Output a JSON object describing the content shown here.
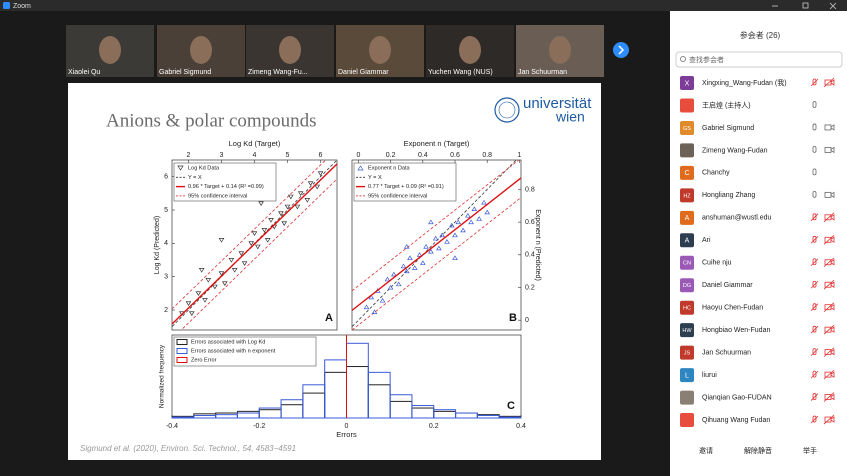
{
  "window": {
    "title": "Zoom"
  },
  "videos": [
    {
      "name": "Xiaolei Qu"
    },
    {
      "name": "Gabriel Sigmund"
    },
    {
      "name": "Zimeng Wang-Fu..."
    },
    {
      "name": "Daniel Giammar"
    },
    {
      "name": "Yuchen Wang (NUS)"
    },
    {
      "name": "Jan Schuurman"
    }
  ],
  "slide": {
    "title": "Anions & polar compounds",
    "logo": {
      "line1": "universität",
      "line2": "wien"
    },
    "citation": "Sigmund et al. (2020), Environ. Sci. Technol., 54, 4583−4591",
    "panel_a": {
      "letter": "A",
      "xlabel": "Log Kd (Target)",
      "ylabel": "Log Kd (Predicted)",
      "xlim": [
        1.5,
        6.5
      ],
      "ylim": [
        1.4,
        6.5
      ],
      "xticks": [
        2,
        3,
        4,
        5,
        6
      ],
      "yticks": [
        2,
        3,
        4,
        5,
        6
      ],
      "legend": [
        "Log Kd Data",
        "Y = X",
        "0.96 * Target + 0.14 (R² =0.99)",
        "95% confidence interval"
      ],
      "fit_line": [
        [
          1.5,
          1.58
        ],
        [
          6.5,
          6.38
        ]
      ],
      "ci_offset": 0.45,
      "points": [
        [
          1.8,
          1.9
        ],
        [
          2.0,
          2.2
        ],
        [
          2.1,
          1.9
        ],
        [
          2.3,
          2.5
        ],
        [
          2.5,
          2.3
        ],
        [
          2.6,
          2.9
        ],
        [
          2.8,
          2.7
        ],
        [
          3.0,
          3.1
        ],
        [
          3.1,
          2.8
        ],
        [
          3.3,
          3.5
        ],
        [
          3.4,
          3.2
        ],
        [
          3.6,
          3.7
        ],
        [
          3.7,
          3.4
        ],
        [
          3.9,
          4.0
        ],
        [
          4.0,
          4.3
        ],
        [
          4.1,
          3.9
        ],
        [
          4.3,
          4.4
        ],
        [
          4.4,
          4.1
        ],
        [
          4.5,
          4.7
        ],
        [
          4.6,
          4.5
        ],
        [
          4.8,
          4.9
        ],
        [
          4.9,
          4.6
        ],
        [
          5.0,
          5.1
        ],
        [
          5.1,
          5.4
        ],
        [
          5.3,
          5.1
        ],
        [
          5.4,
          5.5
        ],
        [
          5.6,
          5.3
        ],
        [
          5.7,
          5.8
        ],
        [
          5.9,
          5.7
        ],
        [
          6.0,
          6.1
        ],
        [
          3.0,
          4.1
        ],
        [
          2.4,
          3.2
        ],
        [
          4.2,
          5.2
        ]
      ]
    },
    "panel_b": {
      "letter": "B",
      "xlabel": "Exponent n (Target)",
      "ylabel": "Exponent n (Predicted)",
      "xlim": [
        -0.04,
        1.01
      ],
      "ylim": [
        -0.06,
        0.98
      ],
      "xticks": [
        0,
        0.2,
        0.4,
        0.6,
        0.8,
        1
      ],
      "yticks": [
        0,
        0.2,
        0.4,
        0.6,
        0.8
      ],
      "legend": [
        "Exponent n Data",
        "Y = X",
        "0.77 * Target + 0.09 (R² =0.91)",
        "95% confidence interval"
      ],
      "fit_line": [
        [
          -0.04,
          0.06
        ],
        [
          1.01,
          0.87
        ]
      ],
      "ci_offset": 0.12,
      "points": [
        [
          0.05,
          0.08
        ],
        [
          0.08,
          0.14
        ],
        [
          0.1,
          0.05
        ],
        [
          0.12,
          0.18
        ],
        [
          0.15,
          0.12
        ],
        [
          0.18,
          0.25
        ],
        [
          0.2,
          0.2
        ],
        [
          0.22,
          0.28
        ],
        [
          0.25,
          0.22
        ],
        [
          0.28,
          0.33
        ],
        [
          0.3,
          0.3
        ],
        [
          0.32,
          0.38
        ],
        [
          0.35,
          0.32
        ],
        [
          0.38,
          0.4
        ],
        [
          0.4,
          0.35
        ],
        [
          0.42,
          0.45
        ],
        [
          0.45,
          0.42
        ],
        [
          0.48,
          0.5
        ],
        [
          0.5,
          0.44
        ],
        [
          0.52,
          0.52
        ],
        [
          0.55,
          0.48
        ],
        [
          0.58,
          0.58
        ],
        [
          0.6,
          0.52
        ],
        [
          0.62,
          0.6
        ],
        [
          0.65,
          0.55
        ],
        [
          0.68,
          0.64
        ],
        [
          0.7,
          0.6
        ],
        [
          0.72,
          0.68
        ],
        [
          0.75,
          0.62
        ],
        [
          0.78,
          0.72
        ],
        [
          0.8,
          0.66
        ],
        [
          0.45,
          0.6
        ],
        [
          0.3,
          0.45
        ],
        [
          0.6,
          0.38
        ]
      ]
    },
    "panel_c": {
      "letter": "C",
      "xlabel": "Errors",
      "ylabel": "Normalized frequency",
      "xlim": [
        -0.4,
        0.4
      ],
      "ylim": [
        0,
        1
      ],
      "xticks": [
        -0.4,
        -0.2,
        0,
        0.2,
        0.4
      ],
      "legend": [
        "Errors associated with Log Kd",
        "Errors associated with n exponent",
        "Zero Error"
      ],
      "bins": [
        -0.4,
        -0.35,
        -0.3,
        -0.25,
        -0.2,
        -0.15,
        -0.1,
        -0.05,
        0,
        0.05,
        0.1,
        0.15,
        0.2,
        0.25,
        0.3,
        0.35,
        0.4
      ],
      "series": [
        {
          "color": "#222222",
          "values": [
            0.02,
            0.05,
            0.06,
            0.08,
            0.1,
            0.16,
            0.3,
            0.55,
            0.62,
            0.4,
            0.2,
            0.12,
            0.08,
            0.06,
            0.04,
            0.02
          ]
        },
        {
          "color": "#3a5bd9",
          "values": [
            0.01,
            0.03,
            0.04,
            0.06,
            0.12,
            0.22,
            0.4,
            0.7,
            0.9,
            0.55,
            0.28,
            0.15,
            0.1,
            0.06,
            0.03,
            0.01
          ]
        }
      ],
      "zero_line": 0
    }
  },
  "participants": {
    "header": "参会者 (26)",
    "search": "查找参会者",
    "list": [
      {
        "initials": "X",
        "name": "Xingxing_Wang-Fudan (我)",
        "color": "#7d3c98",
        "mic": "off",
        "video": "off"
      },
      {
        "name": "王启煌 (主持人)",
        "color": "#e74c3c",
        "mic": "on",
        "video": "none"
      },
      {
        "initials": "GS",
        "name": "Gabriel Sigmund",
        "color": "#e08a2c",
        "mic": "on",
        "video": "on"
      },
      {
        "name": "Zimeng Wang-Fudan",
        "color": "#6d6257",
        "mic": "on",
        "video": "on"
      },
      {
        "initials": "C",
        "name": "Chanchy",
        "color": "#e06b1c",
        "mic": "on",
        "video": "none"
      },
      {
        "initials": "HZ",
        "name": "Hongliang Zhang",
        "color": "#c0392b",
        "mic": "on",
        "video": "on"
      },
      {
        "initials": "A",
        "name": "anshuman@wustl.edu",
        "color": "#e06b1c",
        "mic": "off",
        "video": "off"
      },
      {
        "initials": "A",
        "name": "Ari",
        "color": "#2c3e50",
        "mic": "off",
        "video": "off"
      },
      {
        "initials": "CN",
        "name": "Cuihe nju",
        "color": "#9b59b6",
        "mic": "off",
        "video": "off"
      },
      {
        "initials": "DG",
        "name": "Daniel Giammar",
        "color": "#9b59b6",
        "mic": "off",
        "video": "off"
      },
      {
        "initials": "HC",
        "name": "Haoyu Chen-Fudan",
        "color": "#c0392b",
        "mic": "off",
        "video": "off"
      },
      {
        "initials": "HW",
        "name": "Hongbiao Wen-Fudan",
        "color": "#2c3e50",
        "mic": "off",
        "video": "off"
      },
      {
        "initials": "JS",
        "name": "Jan Schuurman",
        "color": "#c0392b",
        "mic": "off",
        "video": "off"
      },
      {
        "initials": "L",
        "name": "liurui",
        "color": "#2e86c1",
        "mic": "off",
        "video": "off"
      },
      {
        "name": "Qianqian Gao-FUDAN",
        "color": "#8a7f74",
        "mic": "off",
        "video": "off"
      },
      {
        "name": "Qihuang Wang Fudan",
        "color": "#e74c3c",
        "mic": "off",
        "video": "off"
      }
    ],
    "buttons": [
      "邀请",
      "解除静音",
      "举手"
    ]
  }
}
